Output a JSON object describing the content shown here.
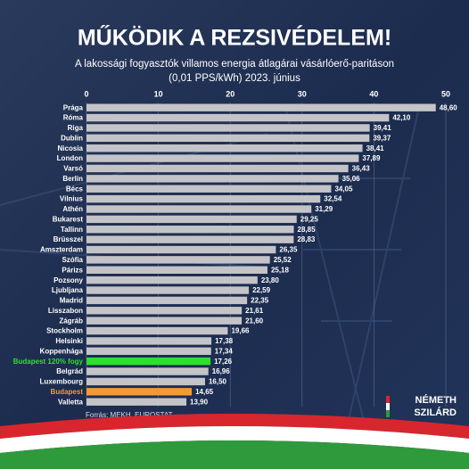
{
  "chart_data": {
    "type": "bar",
    "orientation": "horizontal",
    "title": "MŰKÖDIK A REZSIVÉDELEM!",
    "subtitle": [
      "A lakossági fogyasztók villamos energia átlagárai vásárlóerő-paritáson",
      "(0,01 PPS/kWh) 2023. június"
    ],
    "categories": [
      "Prága",
      "Róma",
      "Riga",
      "Dublin",
      "Nicosia",
      "London",
      "Varsó",
      "Berlin",
      "Bécs",
      "Vilnius",
      "Athén",
      "Bukarest",
      "Tallinn",
      "Brüsszel",
      "Amszterdam",
      "Szófia",
      "Párizs",
      "Pozsony",
      "Ljubljana",
      "Madrid",
      "Lisszabon",
      "Zágráb",
      "Stockholm",
      "Helsinki",
      "Koppenhága",
      "Budapest 120% fogy",
      "Belgrád",
      "Luxembourg",
      "Budapest",
      "Valletta"
    ],
    "values": [
      48.6,
      42.1,
      39.41,
      39.37,
      38.41,
      37.89,
      36.43,
      35.06,
      34.05,
      32.54,
      31.29,
      29.25,
      28.85,
      28.83,
      26.35,
      25.52,
      25.18,
      23.8,
      22.59,
      22.35,
      21.61,
      21.6,
      19.66,
      17.38,
      17.34,
      17.26,
      16.96,
      16.5,
      14.65,
      13.9
    ],
    "value_labels": [
      "48,60",
      "42,10",
      "39,41",
      "39,37",
      "38,41",
      "37,89",
      "36,43",
      "35,06",
      "34,05",
      "32,54",
      "31,29",
      "29,25",
      "28,85",
      "28,83",
      "26,35",
      "25,52",
      "25,18",
      "23,80",
      "22,59",
      "22,35",
      "21,61",
      "21,60",
      "19,66",
      "17,38",
      "17,34",
      "17,26",
      "16,96",
      "16,50",
      "14,65",
      "13,90"
    ],
    "colors": [
      "#c4c4c8",
      "#c4c4c8",
      "#c4c4c8",
      "#c4c4c8",
      "#c4c4c8",
      "#c4c4c8",
      "#c4c4c8",
      "#c4c4c8",
      "#c4c4c8",
      "#c4c4c8",
      "#c4c4c8",
      "#c4c4c8",
      "#c4c4c8",
      "#c4c4c8",
      "#c4c4c8",
      "#c4c4c8",
      "#c4c4c8",
      "#c4c4c8",
      "#c4c4c8",
      "#c4c4c8",
      "#c4c4c8",
      "#c4c4c8",
      "#c4c4c8",
      "#c4c4c8",
      "#c4c4c8",
      "#2ee02e",
      "#c4c4c8",
      "#c4c4c8",
      "#f39a35",
      "#c4c4c8"
    ],
    "xlim": [
      0,
      50
    ],
    "xticks": [
      0,
      10,
      20,
      30,
      40,
      50
    ],
    "grid": true,
    "source": "Forrás: MEKH, EUROSTAT",
    "brand": [
      "NÉMETH",
      "SZILÁRD"
    ]
  }
}
